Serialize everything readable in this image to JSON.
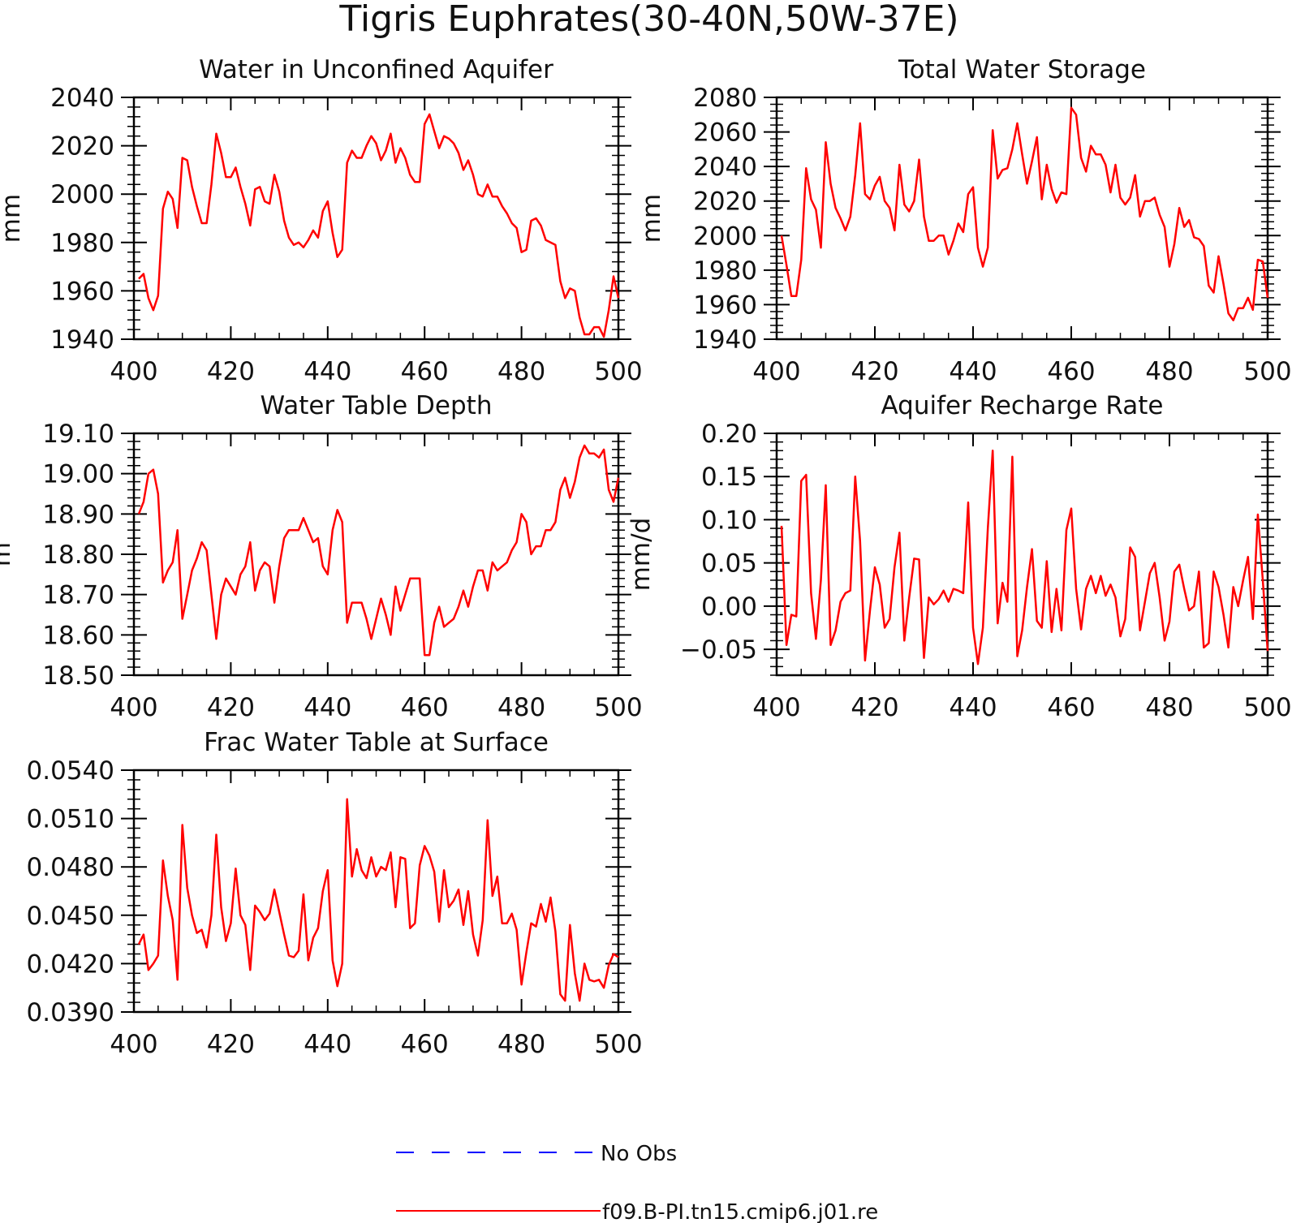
{
  "title": "Tigris Euphrates(30-40N,50W-37E)",
  "colors": {
    "model": "#ff0000",
    "obs": "#0000ff",
    "axis": "#000000"
  },
  "legend": [
    {
      "label": "No Obs",
      "style": "dashed",
      "color": "#0000ff"
    },
    {
      "label": "f09.B-PI.tn15.cmip6.j01.re",
      "style": "solid",
      "color": "#ff0000"
    }
  ],
  "chart_data": [
    {
      "type": "line",
      "title": "Water in Unconfined Aquifer",
      "ylabel": "mm",
      "xlim": [
        400,
        500
      ],
      "ylim": [
        1940,
        2040
      ],
      "xticks": [
        400,
        420,
        440,
        460,
        480,
        500
      ],
      "yticks": [
        1940,
        1960,
        1980,
        2000,
        2020,
        2040
      ],
      "ytick_labels": [
        "1940",
        "1960",
        "1980",
        "2000",
        "2020",
        "2040"
      ],
      "x": {
        "start": 401,
        "step": 1
      },
      "series": [
        {
          "name": "f09.B-PI.tn15.cmip6.j01.re",
          "values": [
            1965,
            1967,
            1957,
            1952,
            1958,
            1994,
            2001,
            1998,
            1986,
            2015,
            2014,
            2003,
            1995,
            1988,
            1988,
            2004,
            2025,
            2017,
            2007,
            2007,
            2011,
            2003,
            1996,
            1987,
            2002,
            2003,
            1997,
            1996,
            2008,
            2001,
            1989,
            1982,
            1979,
            1980,
            1978,
            1981,
            1985,
            1982,
            1993,
            1997,
            1984,
            1974,
            1977,
            2013,
            2018,
            2015,
            2015,
            2020,
            2024,
            2021,
            2014,
            2018,
            2025,
            2013,
            2019,
            2015,
            2008,
            2005,
            2005,
            2029,
            2033,
            2026,
            2019,
            2024,
            2023,
            2021,
            2017,
            2010,
            2014,
            2008,
            2000,
            1999,
            2004,
            1999,
            1999,
            1995,
            1992,
            1988,
            1986,
            1976,
            1977,
            1989,
            1990,
            1987,
            1981,
            1980,
            1979,
            1964,
            1957,
            1961,
            1960,
            1949,
            1942,
            1942,
            1945,
            1945,
            1941,
            1952,
            1966,
            1957
          ]
        }
      ]
    },
    {
      "type": "line",
      "title": "Total Water Storage",
      "ylabel": "mm",
      "xlim": [
        400,
        500
      ],
      "ylim": [
        1940,
        2080
      ],
      "xticks": [
        400,
        420,
        440,
        460,
        480,
        500
      ],
      "yticks": [
        1940,
        1960,
        1980,
        2000,
        2020,
        2040,
        2060,
        2080
      ],
      "ytick_labels": [
        "1940",
        "1960",
        "1980",
        "2000",
        "2020",
        "2040",
        "2060",
        "2080"
      ],
      "x": {
        "start": 401,
        "step": 1
      },
      "series": [
        {
          "name": "f09.B-PI.tn15.cmip6.j01.re",
          "values": [
            2000,
            1983,
            1965,
            1965,
            1986,
            2039,
            2021,
            2015,
            1993,
            2054,
            2030,
            2016,
            2010,
            2003,
            2011,
            2035,
            2065,
            2024,
            2021,
            2029,
            2034,
            2020,
            2016,
            2003,
            2041,
            2018,
            2014,
            2020,
            2044,
            2011,
            1997,
            1997,
            2000,
            2000,
            1989,
            1997,
            2007,
            2002,
            2024,
            2028,
            1993,
            1982,
            1993,
            2061,
            2033,
            2038,
            2039,
            2050,
            2065,
            2047,
            2030,
            2043,
            2057,
            2021,
            2041,
            2027,
            2019,
            2025,
            2024,
            2074,
            2070,
            2045,
            2037,
            2052,
            2047,
            2047,
            2041,
            2025,
            2041,
            2022,
            2018,
            2022,
            2035,
            2011,
            2020,
            2020,
            2022,
            2012,
            2005,
            1982,
            1995,
            2016,
            2005,
            2009,
            1999,
            1998,
            1994,
            1971,
            1967,
            1988,
            1972,
            1955,
            1951,
            1958,
            1958,
            1964,
            1957,
            1986,
            1985,
            1964
          ]
        }
      ]
    },
    {
      "type": "line",
      "title": "Water Table Depth",
      "ylabel": "m",
      "xlim": [
        400,
        500
      ],
      "ylim": [
        18.5,
        19.1
      ],
      "xticks": [
        400,
        420,
        440,
        460,
        480,
        500
      ],
      "yticks": [
        18.5,
        18.6,
        18.7,
        18.8,
        18.9,
        19.0,
        19.1
      ],
      "ytick_labels": [
        "18.50",
        "18.60",
        "18.70",
        "18.80",
        "18.90",
        "19.00",
        "19.10"
      ],
      "x": {
        "start": 401,
        "step": 1
      },
      "series": [
        {
          "name": "f09.B-PI.tn15.cmip6.j01.re",
          "values": [
            18.9,
            18.93,
            19.0,
            19.01,
            18.95,
            18.73,
            18.76,
            18.78,
            18.86,
            18.64,
            18.7,
            18.76,
            18.79,
            18.83,
            18.81,
            18.7,
            18.59,
            18.7,
            18.74,
            18.72,
            18.7,
            18.75,
            18.77,
            18.83,
            18.71,
            18.76,
            18.78,
            18.77,
            18.68,
            18.77,
            18.84,
            18.86,
            18.86,
            18.86,
            18.89,
            18.86,
            18.83,
            18.84,
            18.77,
            18.75,
            18.86,
            18.91,
            18.88,
            18.63,
            18.68,
            18.68,
            18.68,
            18.64,
            18.59,
            18.64,
            18.69,
            18.65,
            18.6,
            18.72,
            18.66,
            18.7,
            18.74,
            18.74,
            18.74,
            18.55,
            18.55,
            18.63,
            18.67,
            18.62,
            18.63,
            18.64,
            18.67,
            18.71,
            18.67,
            18.72,
            18.76,
            18.76,
            18.71,
            18.78,
            18.76,
            18.77,
            18.78,
            18.81,
            18.83,
            18.9,
            18.88,
            18.8,
            18.82,
            18.82,
            18.86,
            18.86,
            18.88,
            18.96,
            18.99,
            18.94,
            18.98,
            19.04,
            19.07,
            19.05,
            19.05,
            19.04,
            19.06,
            18.96,
            18.93,
            18.99
          ]
        }
      ]
    },
    {
      "type": "line",
      "title": "Aquifer Recharge Rate",
      "ylabel": "mm/d",
      "xlim": [
        400,
        500
      ],
      "ylim": [
        -0.08,
        0.2
      ],
      "xticks": [
        400,
        420,
        440,
        460,
        480,
        500
      ],
      "yticks": [
        -0.05,
        0.0,
        0.05,
        0.1,
        0.15,
        0.2
      ],
      "ytick_labels": [
        "−0.05",
        "0.00",
        "0.05",
        "0.10",
        "0.15",
        "0.20"
      ],
      "x": {
        "start": 401,
        "step": 1
      },
      "series": [
        {
          "name": "f09.B-PI.tn15.cmip6.j01.re",
          "values": [
            0.093,
            -0.045,
            -0.01,
            -0.012,
            0.145,
            0.152,
            0.015,
            -0.038,
            0.03,
            0.14,
            -0.045,
            -0.028,
            0.005,
            0.015,
            0.018,
            0.15,
            0.075,
            -0.063,
            -0.005,
            0.045,
            0.025,
            -0.025,
            -0.015,
            0.045,
            0.085,
            -0.04,
            0.01,
            0.055,
            0.054,
            -0.06,
            0.01,
            0.002,
            0.008,
            0.018,
            0.005,
            0.02,
            0.018,
            0.015,
            0.12,
            -0.025,
            -0.067,
            -0.025,
            0.09,
            0.18,
            -0.02,
            0.027,
            0.005,
            0.173,
            -0.058,
            -0.028,
            0.022,
            0.066,
            -0.017,
            -0.025,
            0.052,
            -0.03,
            0.02,
            -0.028,
            0.088,
            0.113,
            0.02,
            -0.027,
            0.02,
            0.035,
            0.015,
            0.035,
            0.012,
            0.025,
            0.01,
            -0.035,
            -0.015,
            0.068,
            0.057,
            -0.028,
            0.005,
            0.038,
            0.05,
            0.01,
            -0.04,
            -0.018,
            0.04,
            0.048,
            0.02,
            -0.005,
            0.0,
            0.04,
            -0.048,
            -0.043,
            0.04,
            0.022,
            -0.01,
            -0.048,
            0.022,
            0.0,
            0.03,
            0.057,
            -0.015,
            0.106,
            0.03,
            -0.052
          ]
        }
      ]
    },
    {
      "type": "line",
      "title": "Frac Water Table at Surface",
      "ylabel": "",
      "xlim": [
        400,
        500
      ],
      "ylim": [
        0.039,
        0.054
      ],
      "xticks": [
        400,
        420,
        440,
        460,
        480,
        500
      ],
      "yticks": [
        0.039,
        0.042,
        0.045,
        0.048,
        0.051,
        0.054
      ],
      "ytick_labels": [
        "0.0390",
        "0.0420",
        "0.0450",
        "0.0480",
        "0.0510",
        "0.0540"
      ],
      "x": {
        "start": 401,
        "step": 1
      },
      "series": [
        {
          "name": "f09.B-PI.tn15.cmip6.j01.re",
          "values": [
            0.0432,
            0.0438,
            0.0416,
            0.042,
            0.0425,
            0.0484,
            0.0462,
            0.0447,
            0.041,
            0.0506,
            0.0467,
            0.045,
            0.0439,
            0.0441,
            0.043,
            0.045,
            0.05,
            0.0455,
            0.0434,
            0.0445,
            0.0479,
            0.045,
            0.0444,
            0.0416,
            0.0456,
            0.0452,
            0.0447,
            0.0451,
            0.0466,
            0.0452,
            0.0438,
            0.0425,
            0.0424,
            0.0428,
            0.0463,
            0.0422,
            0.0436,
            0.0442,
            0.0465,
            0.0478,
            0.0422,
            0.0406,
            0.042,
            0.0522,
            0.0474,
            0.0491,
            0.0478,
            0.0473,
            0.0486,
            0.0474,
            0.048,
            0.0478,
            0.0489,
            0.0455,
            0.0486,
            0.0485,
            0.0442,
            0.0445,
            0.0481,
            0.0493,
            0.0487,
            0.0477,
            0.0446,
            0.0478,
            0.0455,
            0.0459,
            0.0466,
            0.0444,
            0.0465,
            0.0438,
            0.0425,
            0.0447,
            0.0509,
            0.0462,
            0.0474,
            0.0445,
            0.0445,
            0.0451,
            0.0441,
            0.0407,
            0.0427,
            0.0445,
            0.0443,
            0.0457,
            0.0446,
            0.0461,
            0.044,
            0.0401,
            0.0397,
            0.0444,
            0.0414,
            0.0397,
            0.042,
            0.041,
            0.0409,
            0.041,
            0.0405,
            0.0419,
            0.0426,
            0.0424
          ]
        }
      ]
    }
  ]
}
